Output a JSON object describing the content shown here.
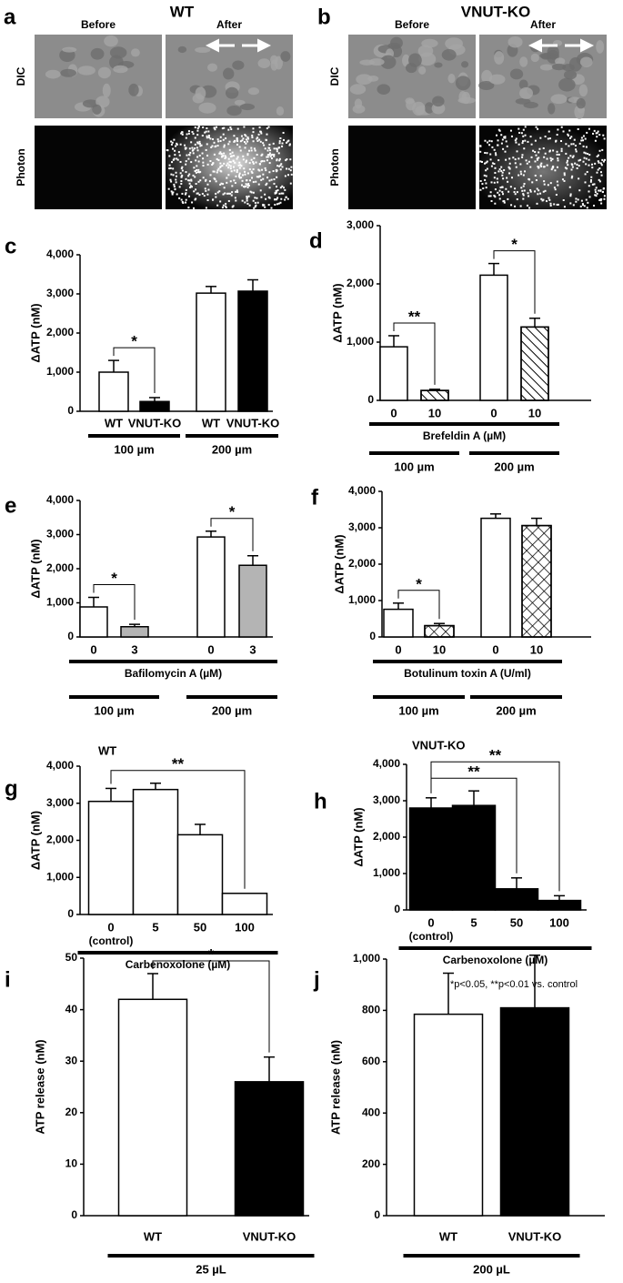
{
  "image_panels": [
    {
      "letter": "a",
      "title": "WT",
      "columns": [
        "Before",
        "After"
      ],
      "rows": [
        "DIC",
        "Photon"
      ]
    },
    {
      "letter": "b",
      "title": "VNUT-KO",
      "columns": [
        "Before",
        "After"
      ],
      "rows": [
        "DIC",
        "Photon"
      ]
    }
  ],
  "chart_data": [
    {
      "type": "bar",
      "letter": "c",
      "ylabel": "ΔATP (nM)",
      "categories": [
        "WT",
        "VNUT-KO",
        "WT",
        "VNUT-KO"
      ],
      "values": [
        1000,
        250,
        3020,
        3070
      ],
      "errors": [
        300,
        100,
        170,
        290
      ],
      "colors": [
        "#ffffff",
        "#000000",
        "#ffffff",
        "#000000"
      ],
      "ylim": [
        0,
        4000
      ],
      "yticks": [
        0,
        {
          "value": 1000,
          "label": "1,000"
        },
        {
          "value": 2000,
          "label": "2,000"
        },
        {
          "value": 3000,
          "label": "3,000"
        },
        {
          "value": 4000,
          "label": "4,000"
        }
      ],
      "groups": [
        "100 µm",
        "200 µm"
      ],
      "significance": [
        {
          "from": 0,
          "to": 1,
          "label": "*"
        }
      ]
    },
    {
      "type": "bar",
      "letter": "d",
      "ylabel": "ΔATP (nM)",
      "categories": [
        "0",
        "10",
        "0",
        "10"
      ],
      "values": [
        920,
        170,
        2150,
        1260
      ],
      "errors": [
        190,
        20,
        200,
        150
      ],
      "colors": [
        "#ffffff",
        "#ffffff",
        "#ffffff",
        "#ffffff"
      ],
      "hatches": [
        null,
        "diagonal",
        null,
        "diagonal"
      ],
      "ylim": [
        0,
        3000
      ],
      "yticks": [
        0,
        {
          "value": 1000,
          "label": "1,000"
        },
        {
          "value": 2000,
          "label": "2,000"
        },
        {
          "value": 3000,
          "label": "3,000"
        }
      ],
      "treatment": "Brefeldin A (µM)",
      "groups": [
        "100 µm",
        "200 µm"
      ],
      "significance": [
        {
          "from": 0,
          "to": 1,
          "label": "**"
        },
        {
          "from": 2,
          "to": 3,
          "label": "*"
        }
      ]
    },
    {
      "type": "bar",
      "letter": "e",
      "ylabel": "ΔATP (nM)",
      "categories": [
        "0",
        "3",
        "0",
        "3"
      ],
      "values": [
        880,
        300,
        2930,
        2100
      ],
      "errors": [
        280,
        70,
        170,
        280
      ],
      "colors": [
        "#ffffff",
        "#b4b4b4",
        "#ffffff",
        "#b4b4b4"
      ],
      "ylim": [
        0,
        4000
      ],
      "yticks": [
        0,
        {
          "value": 1000,
          "label": "1,000"
        },
        {
          "value": 2000,
          "label": "2,000"
        },
        {
          "value": 3000,
          "label": "3,000"
        },
        {
          "value": 4000,
          "label": "4,000"
        }
      ],
      "treatment": "Bafilomycin A (µM)",
      "groups": [
        "100 µm",
        "200 µm"
      ],
      "significance": [
        {
          "from": 0,
          "to": 1,
          "label": "*"
        },
        {
          "from": 2,
          "to": 3,
          "label": "*"
        }
      ]
    },
    {
      "type": "bar",
      "letter": "f",
      "ylabel": "ΔATP (nM)",
      "categories": [
        "0",
        "10",
        "0",
        "10"
      ],
      "values": [
        760,
        310,
        3260,
        3060
      ],
      "errors": [
        170,
        60,
        120,
        200
      ],
      "colors": [
        "#ffffff",
        "#ffffff",
        "#ffffff",
        "#ffffff"
      ],
      "hatches": [
        null,
        "cross",
        null,
        "cross"
      ],
      "ylim": [
        0,
        4000
      ],
      "yticks": [
        0,
        {
          "value": 1000,
          "label": "1,000"
        },
        {
          "value": 2000,
          "label": "2,000"
        },
        {
          "value": 3000,
          "label": "3,000"
        },
        {
          "value": 4000,
          "label": "4,000"
        }
      ],
      "treatment": "Botulinum toxin A (U/ml)",
      "groups": [
        "100 µm",
        "200 µm"
      ],
      "significance": [
        {
          "from": 0,
          "to": 1,
          "label": "*"
        }
      ]
    },
    {
      "type": "bar",
      "letter": "g",
      "title": "WT",
      "ylabel": "ΔATP (nM)",
      "categories": [
        "0",
        "5",
        "50",
        "100"
      ],
      "category_note": "(control)",
      "values": [
        3050,
        3370,
        2150,
        570
      ],
      "errors": [
        350,
        170,
        280,
        null
      ],
      "colors": [
        "#ffffff",
        "#ffffff",
        "#ffffff",
        "#ffffff"
      ],
      "ylim": [
        0,
        4000
      ],
      "yticks": [
        0,
        {
          "value": 1000,
          "label": "1,000"
        },
        {
          "value": 2000,
          "label": "2,000"
        },
        {
          "value": 3000,
          "label": "3,000"
        },
        {
          "value": 4000,
          "label": "4,000"
        }
      ],
      "treatment": "Carbenoxolone (µM)",
      "significance": [
        {
          "from": 0,
          "to": 3,
          "label": "**"
        }
      ]
    },
    {
      "type": "bar",
      "letter": "h",
      "title": "VNUT-KO",
      "ylabel": "ΔATP (nM)",
      "categories": [
        "0",
        "5",
        "50",
        "100"
      ],
      "category_note": "(control)",
      "values": [
        2800,
        2870,
        580,
        260
      ],
      "errors": [
        280,
        400,
        300,
        130
      ],
      "colors": [
        "#000000",
        "#000000",
        "#000000",
        "#000000"
      ],
      "ylim": [
        0,
        4000
      ],
      "yticks": [
        0,
        {
          "value": 1000,
          "label": "1,000"
        },
        {
          "value": 2000,
          "label": "2,000"
        },
        {
          "value": 3000,
          "label": "3,000"
        },
        {
          "value": 4000,
          "label": "4,000"
        }
      ],
      "treatment": "Carbenoxolone (µM)",
      "significance": [
        {
          "from": 0,
          "to": 2,
          "label": "**"
        },
        {
          "from": 0,
          "to": 3,
          "label": "**"
        }
      ]
    },
    {
      "type": "bar",
      "letter": "i",
      "ylabel": "ATP release (nM)",
      "categories": [
        "WT",
        "VNUT-KO"
      ],
      "values": [
        42,
        26
      ],
      "errors": [
        5,
        4.8
      ],
      "colors": [
        "#ffffff",
        "#000000"
      ],
      "ylim": [
        0,
        50
      ],
      "yticks": [
        0,
        10,
        20,
        30,
        40,
        50
      ],
      "groups": [
        "25 µL"
      ],
      "significance": [
        {
          "from": 0,
          "to": 1,
          "label": "*"
        }
      ]
    },
    {
      "type": "bar",
      "letter": "j",
      "ylabel": "ATP release (nM)",
      "categories": [
        "WT",
        "VNUT-KO"
      ],
      "values": [
        785,
        810
      ],
      "errors": [
        160,
        205
      ],
      "colors": [
        "#ffffff",
        "#000000"
      ],
      "ylim": [
        0,
        1000
      ],
      "yticks": [
        0,
        200,
        400,
        600,
        800,
        {
          "value": 1000,
          "label": "1,000"
        }
      ],
      "groups": [
        "200 µL"
      ],
      "significance": []
    }
  ],
  "footnote": "*p<0.05, **p<0.01 vs. control"
}
